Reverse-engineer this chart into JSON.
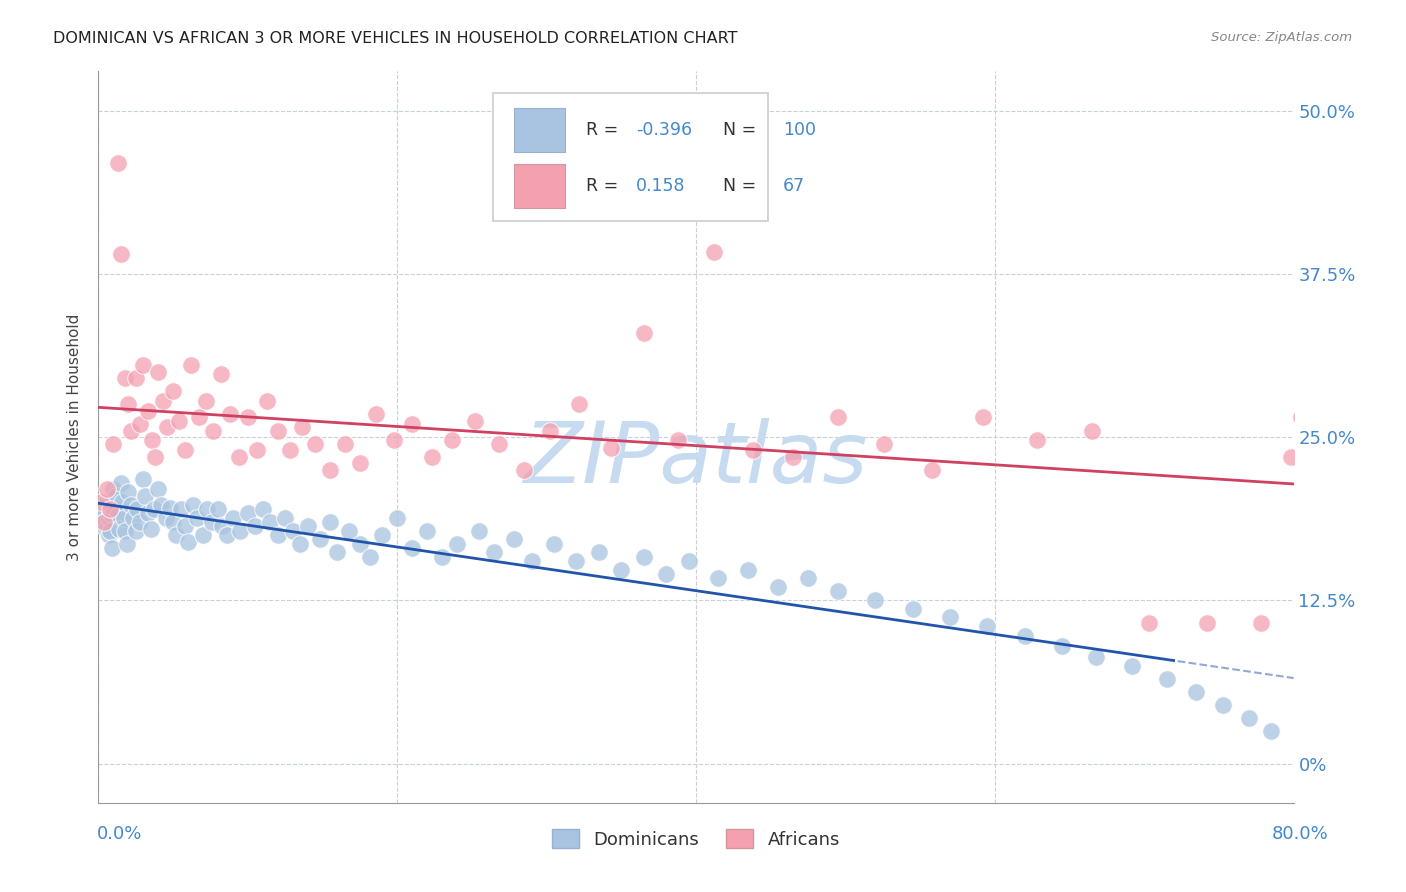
{
  "title": "DOMINICAN VS AFRICAN 3 OR MORE VEHICLES IN HOUSEHOLD CORRELATION CHART",
  "source": "Source: ZipAtlas.com",
  "ylabel": "3 or more Vehicles in Household",
  "ytick_labels": [
    "0%",
    "12.5%",
    "25.0%",
    "37.5%",
    "50.0%"
  ],
  "ytick_values": [
    0.0,
    0.125,
    0.25,
    0.375,
    0.5
  ],
  "xlim": [
    0.0,
    0.8
  ],
  "ylim": [
    -0.03,
    0.53
  ],
  "legend_R1": "-0.396",
  "legend_N1": "100",
  "legend_R2": "0.158",
  "legend_N2": "67",
  "color_dominicans": "#a8c4e0",
  "color_africans": "#f4a0b0",
  "color_line1": "#2255aa",
  "color_line2": "#d04060",
  "watermark": "ZIPatlas",
  "watermark_color_rgb": [
    0.78,
    0.86,
    0.94
  ],
  "dominicans_x": [
    0.002,
    0.003,
    0.004,
    0.005,
    0.006,
    0.007,
    0.007,
    0.008,
    0.008,
    0.009,
    0.01,
    0.01,
    0.012,
    0.013,
    0.014,
    0.015,
    0.016,
    0.017,
    0.018,
    0.019,
    0.02,
    0.022,
    0.023,
    0.025,
    0.026,
    0.028,
    0.03,
    0.031,
    0.033,
    0.035,
    0.037,
    0.04,
    0.042,
    0.045,
    0.048,
    0.05,
    0.052,
    0.055,
    0.058,
    0.06,
    0.063,
    0.066,
    0.07,
    0.073,
    0.076,
    0.08,
    0.083,
    0.086,
    0.09,
    0.095,
    0.1,
    0.105,
    0.11,
    0.115,
    0.12,
    0.125,
    0.13,
    0.135,
    0.14,
    0.148,
    0.155,
    0.16,
    0.168,
    0.175,
    0.182,
    0.19,
    0.2,
    0.21,
    0.22,
    0.23,
    0.24,
    0.255,
    0.265,
    0.278,
    0.29,
    0.305,
    0.32,
    0.335,
    0.35,
    0.365,
    0.38,
    0.395,
    0.415,
    0.435,
    0.455,
    0.475,
    0.495,
    0.52,
    0.545,
    0.57,
    0.595,
    0.62,
    0.645,
    0.668,
    0.692,
    0.715,
    0.735,
    0.753,
    0.77,
    0.785
  ],
  "dominicans_y": [
    0.195,
    0.19,
    0.185,
    0.18,
    0.2,
    0.188,
    0.175,
    0.192,
    0.178,
    0.165,
    0.21,
    0.195,
    0.205,
    0.19,
    0.18,
    0.215,
    0.2,
    0.188,
    0.178,
    0.168,
    0.208,
    0.198,
    0.188,
    0.178,
    0.195,
    0.185,
    0.218,
    0.205,
    0.192,
    0.18,
    0.195,
    0.21,
    0.198,
    0.188,
    0.196,
    0.185,
    0.175,
    0.195,
    0.182,
    0.17,
    0.198,
    0.188,
    0.175,
    0.195,
    0.185,
    0.195,
    0.182,
    0.175,
    0.188,
    0.178,
    0.192,
    0.182,
    0.195,
    0.185,
    0.175,
    0.188,
    0.178,
    0.168,
    0.182,
    0.172,
    0.185,
    0.162,
    0.178,
    0.168,
    0.158,
    0.175,
    0.188,
    0.165,
    0.178,
    0.158,
    0.168,
    0.178,
    0.162,
    0.172,
    0.155,
    0.168,
    0.155,
    0.162,
    0.148,
    0.158,
    0.145,
    0.155,
    0.142,
    0.148,
    0.135,
    0.142,
    0.132,
    0.125,
    0.118,
    0.112,
    0.105,
    0.098,
    0.09,
    0.082,
    0.075,
    0.065,
    0.055,
    0.045,
    0.035,
    0.025
  ],
  "africans_x": [
    0.002,
    0.004,
    0.006,
    0.008,
    0.01,
    0.013,
    0.015,
    0.018,
    0.02,
    0.022,
    0.025,
    0.028,
    0.03,
    0.033,
    0.036,
    0.038,
    0.04,
    0.043,
    0.046,
    0.05,
    0.054,
    0.058,
    0.062,
    0.067,
    0.072,
    0.077,
    0.082,
    0.088,
    0.094,
    0.1,
    0.106,
    0.113,
    0.12,
    0.128,
    0.136,
    0.145,
    0.155,
    0.165,
    0.175,
    0.186,
    0.198,
    0.21,
    0.223,
    0.237,
    0.252,
    0.268,
    0.285,
    0.302,
    0.322,
    0.343,
    0.365,
    0.388,
    0.412,
    0.438,
    0.465,
    0.495,
    0.526,
    0.558,
    0.592,
    0.628,
    0.665,
    0.703,
    0.742,
    0.778,
    0.798,
    0.805,
    0.81
  ],
  "africans_y": [
    0.2,
    0.185,
    0.21,
    0.195,
    0.245,
    0.46,
    0.39,
    0.295,
    0.275,
    0.255,
    0.295,
    0.26,
    0.305,
    0.27,
    0.248,
    0.235,
    0.3,
    0.278,
    0.258,
    0.285,
    0.262,
    0.24,
    0.305,
    0.265,
    0.278,
    0.255,
    0.298,
    0.268,
    0.235,
    0.265,
    0.24,
    0.278,
    0.255,
    0.24,
    0.258,
    0.245,
    0.225,
    0.245,
    0.23,
    0.268,
    0.248,
    0.26,
    0.235,
    0.248,
    0.262,
    0.245,
    0.225,
    0.255,
    0.275,
    0.242,
    0.33,
    0.248,
    0.392,
    0.24,
    0.235,
    0.265,
    0.245,
    0.225,
    0.265,
    0.248,
    0.255,
    0.108,
    0.108,
    0.108,
    0.235,
    0.265,
    0.275
  ]
}
